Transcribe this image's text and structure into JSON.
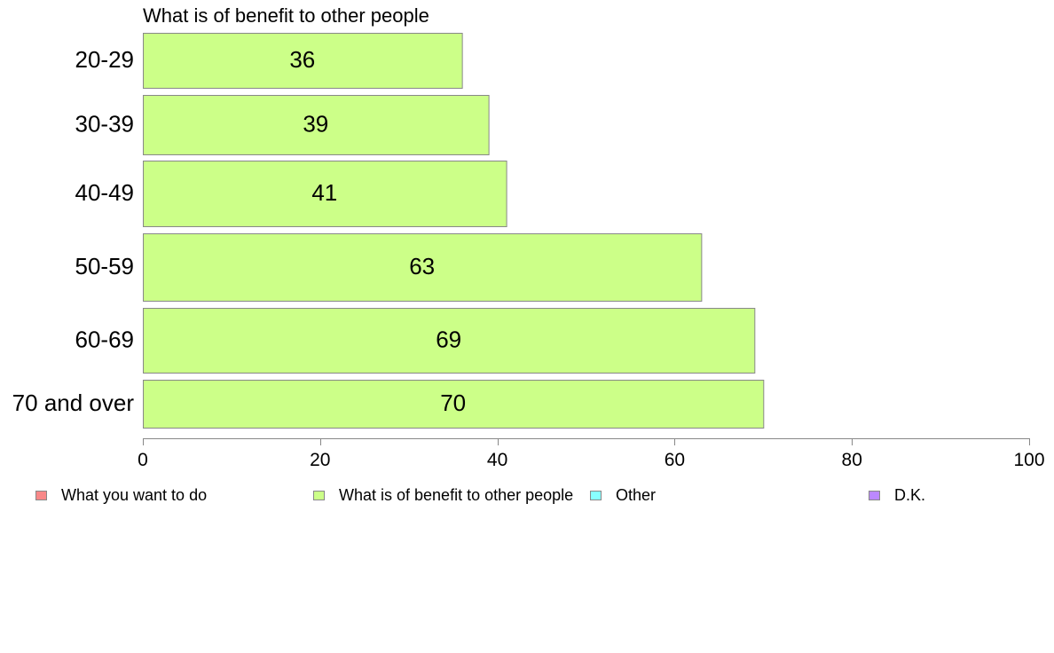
{
  "chart_data": {
    "type": "bar",
    "orientation": "horizontal",
    "title": "What is of benefit to other people",
    "xlabel": "",
    "ylabel": "",
    "categories": [
      "20-29",
      "30-39",
      "40-49",
      "50-59",
      "60-69",
      "70 and over"
    ],
    "series": [
      {
        "name": "What is of benefit to other people",
        "values": [
          36,
          39,
          41,
          63,
          69,
          70
        ]
      }
    ],
    "value_labels": [
      "36",
      "39",
      "41",
      "63",
      "69",
      "70"
    ],
    "xlim": [
      0,
      100
    ],
    "xticks": [
      0,
      20,
      40,
      60,
      80,
      100
    ],
    "xtick_labels": [
      "0",
      "20",
      "40",
      "60",
      "80",
      "100"
    ],
    "grid": false,
    "legend_position": "bottom",
    "bar_color": "#ccff88",
    "legend": [
      {
        "label": "What you want to do",
        "color": "#f88888"
      },
      {
        "label": "What is of benefit to other people",
        "color": "#ccff88"
      },
      {
        "label": "Other",
        "color": "#88ffff"
      },
      {
        "label": "D.K.",
        "color": "#bb88ff"
      }
    ]
  }
}
